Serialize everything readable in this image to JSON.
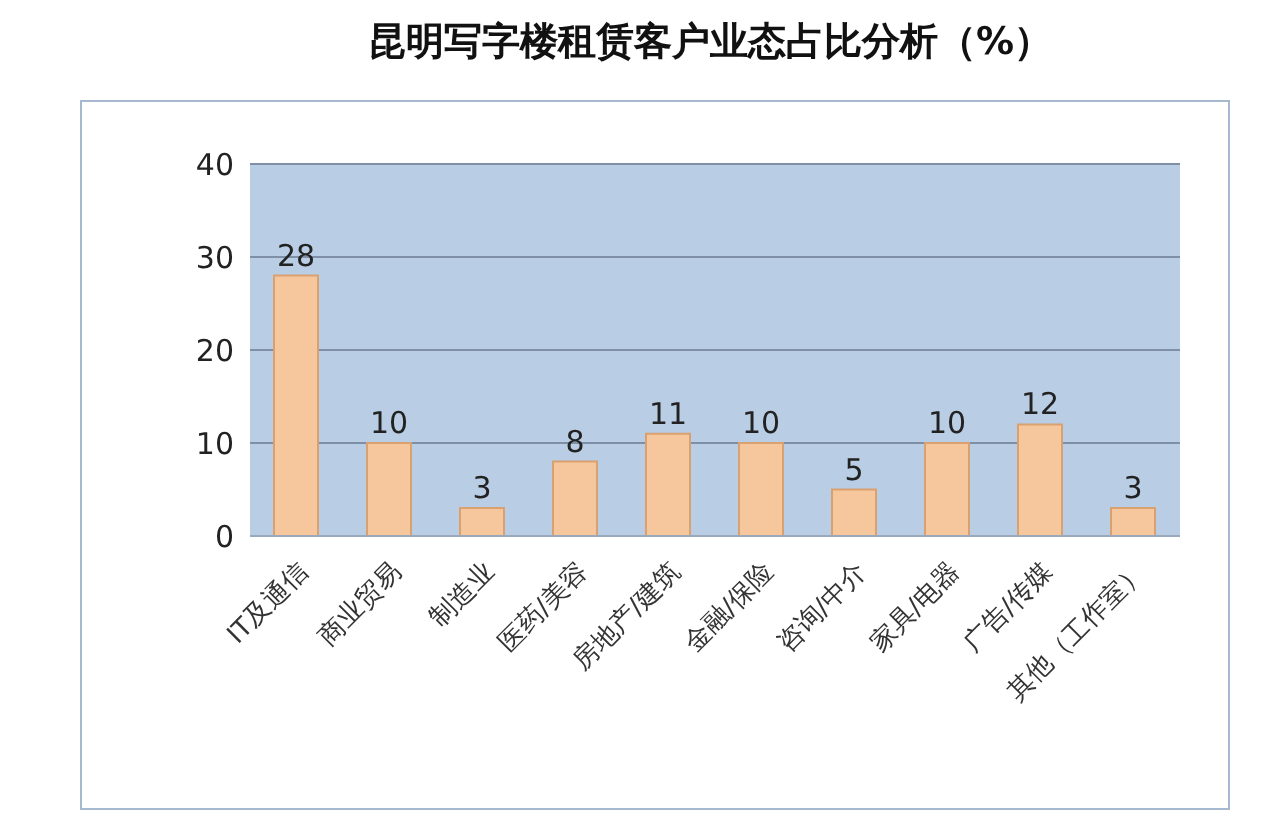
{
  "chart_data": {
    "type": "bar",
    "title": "昆明写字楼租赁客户业态占比分析（%）",
    "categories": [
      "IT及通信",
      "商业贸易",
      "制造业",
      "医药/美容",
      "房地产/建筑",
      "金融/保险",
      "咨询/中介",
      "家具/电器",
      "广告/传媒",
      "其他（工作室）"
    ],
    "values": [
      28,
      10,
      3,
      8,
      11,
      10,
      5,
      10,
      12,
      3
    ],
    "color": "#f6c79c",
    "ylim": [
      0,
      40
    ],
    "yticks": [
      0,
      10,
      20,
      30,
      40
    ],
    "grid": "y",
    "data_labels": true
  }
}
